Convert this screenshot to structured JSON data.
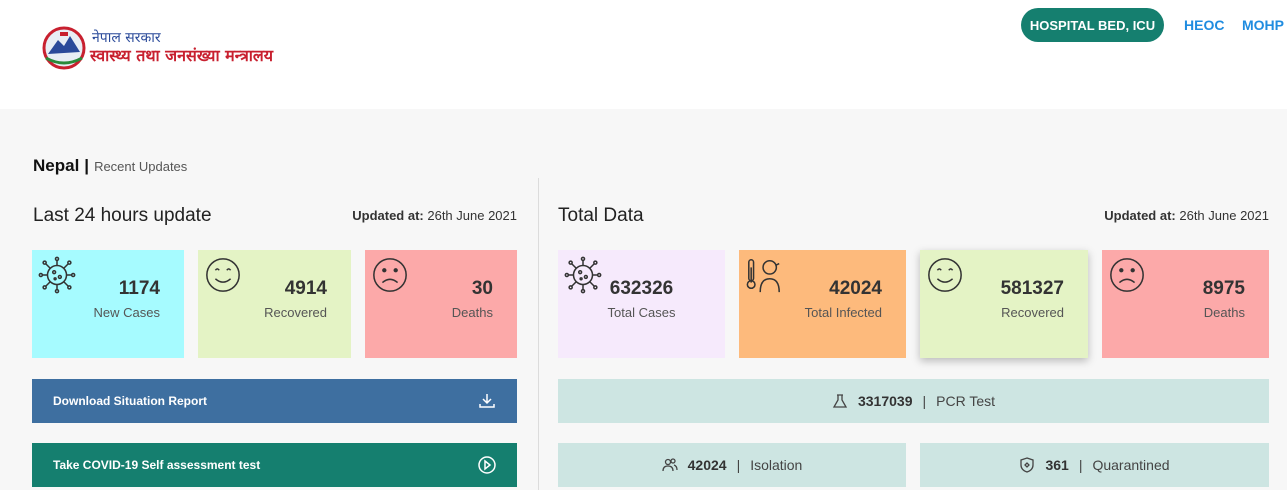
{
  "header": {
    "logo_line1": "नेपाल सरकार",
    "logo_line2": "स्वास्थ्य तथा जनसंख्या मन्त्रालय",
    "nav": {
      "hospital_bed": "HOSPITAL BED, ICU",
      "heoc": "HEOC",
      "mohp": "MOHP"
    }
  },
  "breadcrumb": {
    "country": "Nepal",
    "separator": "|",
    "section": "Recent Updates"
  },
  "last24": {
    "title": "Last 24 hours update",
    "updated_label": "Updated at:",
    "updated_value": "26th June 2021",
    "cards": [
      {
        "value": "1174",
        "label": "New Cases",
        "color": "#a6fbff",
        "icon": "virus-icon"
      },
      {
        "value": "4914",
        "label": "Recovered",
        "color": "#e4f3c5",
        "icon": "smile-icon"
      },
      {
        "value": "30",
        "label": "Deaths",
        "color": "#fca9a9",
        "icon": "sad-icon"
      }
    ],
    "buttons": {
      "download": "Download Situation Report",
      "self_test": "Take COVID-19 Self assessment test"
    }
  },
  "total": {
    "title": "Total Data",
    "updated_label": "Updated at:",
    "updated_value": "26th June 2021",
    "cards": [
      {
        "value": "632326",
        "label": "Total Cases",
        "color": "#f6eafc",
        "icon": "virus-icon"
      },
      {
        "value": "42024",
        "label": "Total Infected",
        "color": "#fdba7c",
        "icon": "thermometer-person-icon"
      },
      {
        "value": "581327",
        "label": "Recovered",
        "color": "#e4f3c5",
        "icon": "smile-icon"
      },
      {
        "value": "8975",
        "label": "Deaths",
        "color": "#fca9a9",
        "icon": "sad-icon"
      }
    ],
    "stats": {
      "pcr": {
        "value": "3317039",
        "label": "PCR Test",
        "icon": "flask-icon"
      },
      "isolation": {
        "value": "42024",
        "label": "Isolation",
        "icon": "people-icon"
      },
      "quarantined": {
        "value": "361",
        "label": "Quarantined",
        "icon": "shield-icon"
      }
    }
  },
  "colors": {
    "teal": "#157f6f",
    "blue": "#3e6fa0",
    "link": "#1f8ce0",
    "stat_bg": "#cde5e2"
  }
}
